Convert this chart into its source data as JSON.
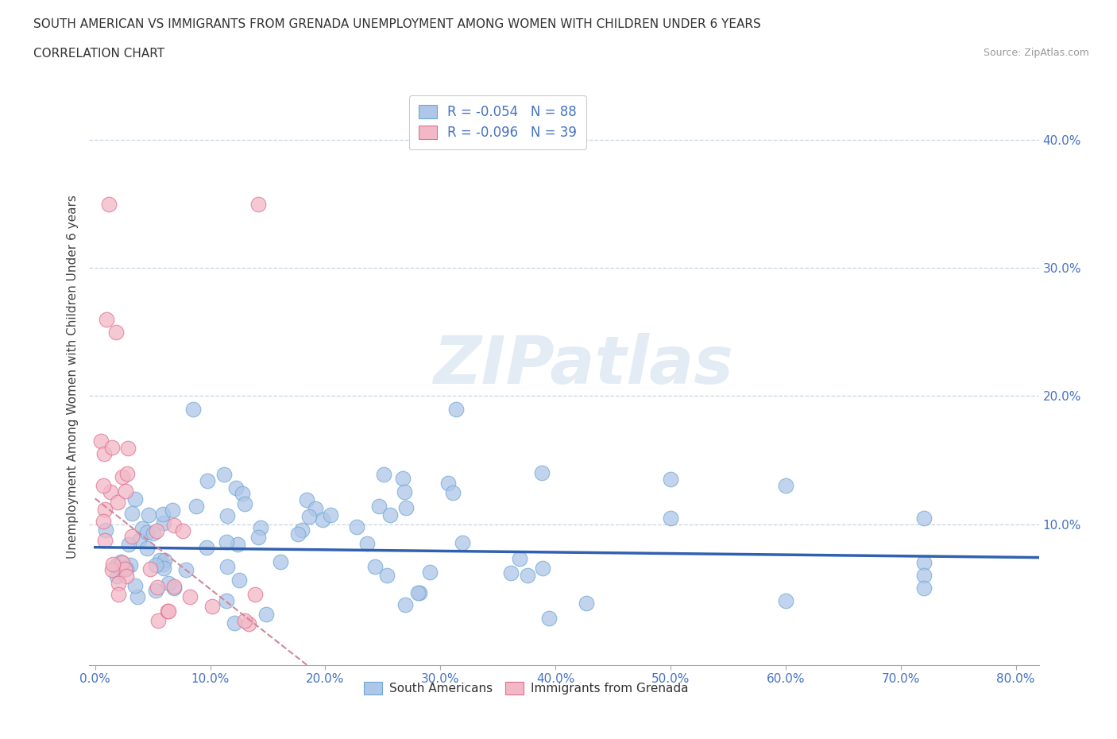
{
  "title_line1": "SOUTH AMERICAN VS IMMIGRANTS FROM GRENADA UNEMPLOYMENT AMONG WOMEN WITH CHILDREN UNDER 6 YEARS",
  "title_line2": "CORRELATION CHART",
  "source": "Source: ZipAtlas.com",
  "ylabel": "Unemployment Among Women with Children Under 6 years",
  "xlim": [
    -0.005,
    0.82
  ],
  "ylim": [
    -0.01,
    0.44
  ],
  "xticks": [
    0.0,
    0.1,
    0.2,
    0.3,
    0.4,
    0.5,
    0.6,
    0.7,
    0.8
  ],
  "xticklabels": [
    "0.0%",
    "10.0%",
    "20.0%",
    "30.0%",
    "40.0%",
    "50.0%",
    "60.0%",
    "70.0%",
    "80.0%"
  ],
  "yticks_left": [],
  "yticks_right": [
    0.1,
    0.2,
    0.3,
    0.4
  ],
  "yticklabels_right": [
    "10.0%",
    "20.0%",
    "30.0%",
    "40.0%"
  ],
  "blue_color": "#aec6e8",
  "blue_edge": "#6fa8d4",
  "pink_color": "#f2b8c6",
  "pink_edge": "#e07090",
  "trendline_blue": "#3060b0",
  "trendline_pink_color": "#d08898",
  "legend_R_blue": "-0.054",
  "legend_N_blue": "88",
  "legend_R_pink": "-0.096",
  "legend_N_pink": "39",
  "legend_text_color": "#4472c4",
  "tick_color_x": "#4472c4",
  "tick_color_right": "#4472c4",
  "watermark_text": "ZIPatlas",
  "watermark_color": "#d8e4f0",
  "background_color": "#ffffff",
  "grid_color": "#c8d4e8",
  "bottom_legend_labels": [
    "South Americans",
    "Immigrants from Grenada"
  ]
}
